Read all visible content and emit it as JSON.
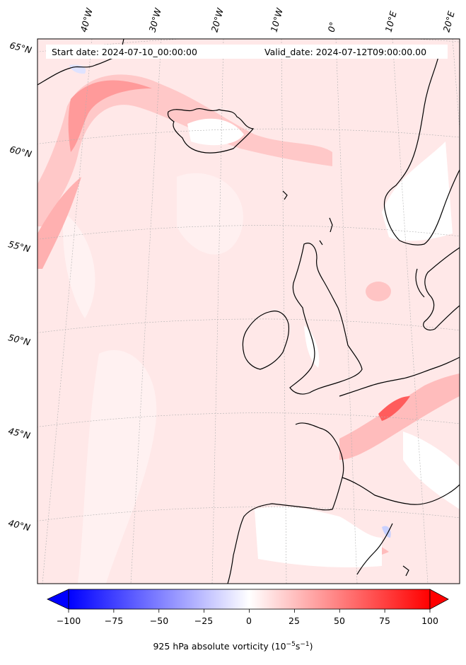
{
  "header": {
    "start_date": "Start date: 2024-07-10_00:00:00",
    "valid_date": "Valid_date: 2024-07-12T09:00:00.00"
  },
  "longitude_labels": [
    "40°W",
    "30°W",
    "20°W",
    "10°W",
    "0°",
    "10°E",
    "20°E"
  ],
  "latitude_labels": [
    "65°N",
    "60°N",
    "55°N",
    "50°N",
    "45°N",
    "40°N"
  ],
  "colorbar": {
    "ticks": [
      "−100",
      "−75",
      "−50",
      "−25",
      "0",
      "25",
      "50",
      "75",
      "100"
    ],
    "label_main": "925 hPa absolute vorticity (10",
    "label_exp1": "−5",
    "label_mid": "s",
    "label_exp2": "−1",
    "label_end": ")",
    "vmin": -100,
    "vmax": 100,
    "extend": "both",
    "cmap": "bwr",
    "colors": {
      "negative": "#0000ff",
      "zero": "#ffffff",
      "positive": "#ff0000"
    }
  },
  "map": {
    "projection": "conic over North Atlantic / Western Europe",
    "field_background": "#ffe9e9",
    "coastline_color": "#000000",
    "gridline_color": "#b0b0b0"
  }
}
